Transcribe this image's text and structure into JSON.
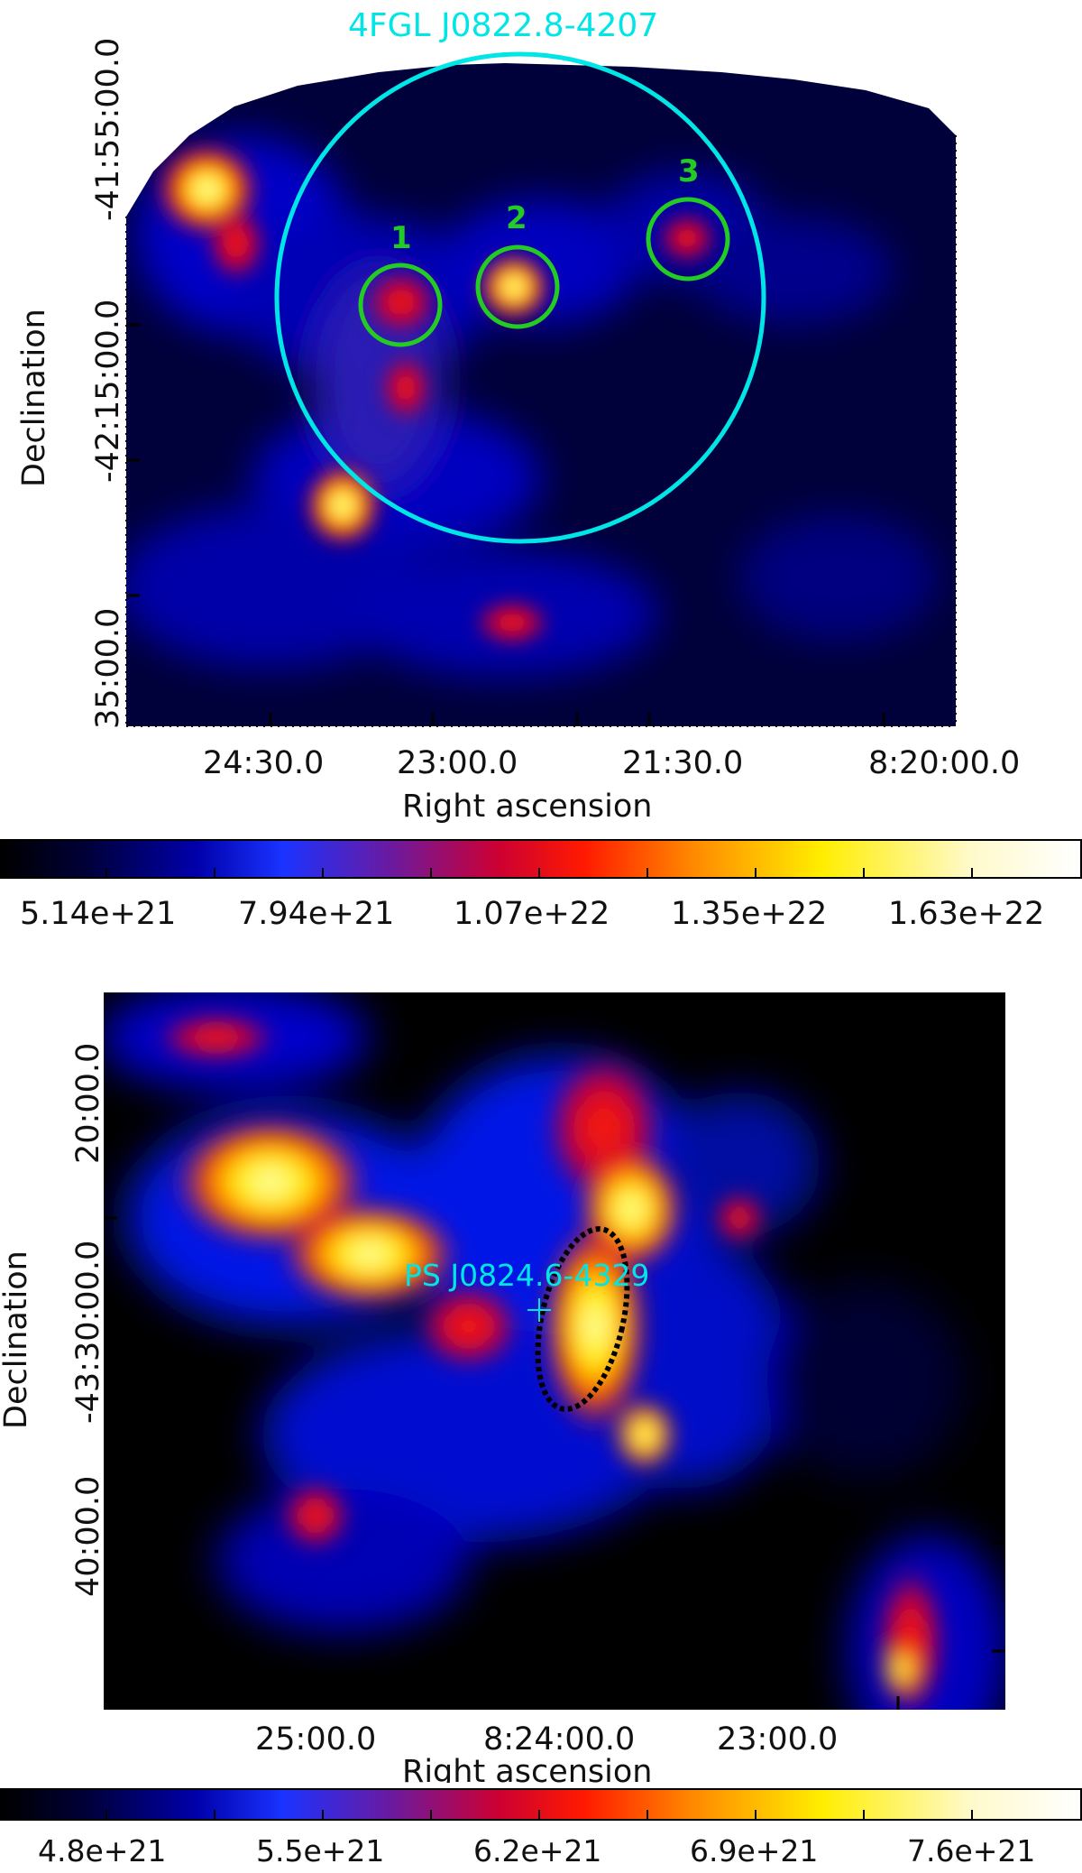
{
  "top_panel": {
    "title": "4FGL J0822.8-4207",
    "sources": [
      "1",
      "2",
      "3"
    ],
    "x_ticks": [
      "24:30.0",
      "23:00.0",
      "21:30.0",
      "8:20:00.0"
    ],
    "x_label": "Right ascension",
    "y_ticks": [
      "-41:55:00.0",
      "-42:15:00.0",
      "35:00.0"
    ],
    "y_label": "Declination",
    "colorbar_ticks": [
      "5.14e+21",
      "7.94e+21",
      "1.07e+22",
      "1.35e+22",
      "1.63e+22"
    ],
    "colors": {
      "region_circle": "#00e5e5",
      "source_circle": "#22cc22",
      "title": "#00e5e5",
      "source_label": "#22cc22"
    }
  },
  "bottom_panel": {
    "source_label": "PS J0824.6-4329",
    "x_ticks": [
      "25:00.0",
      "8:24:00.0",
      "23:00.0"
    ],
    "x_label": "Right ascension",
    "y_ticks": [
      "20:00.0",
      "-43:30:00.0",
      "40:00.0"
    ],
    "y_label": "Declination",
    "colorbar_ticks": [
      "4.8e+21",
      "5.5e+21",
      "6.2e+21",
      "6.9e+21",
      "7.6e+21"
    ],
    "colors": {
      "source_label": "#00e5e5",
      "ellipse": "#000000"
    }
  },
  "colormap": [
    "#000000",
    "#00003a",
    "#0000aa",
    "#1a33ff",
    "#8a1a8a",
    "#cc0033",
    "#ff1a00",
    "#ff8800",
    "#ffee00",
    "#fffff0"
  ]
}
